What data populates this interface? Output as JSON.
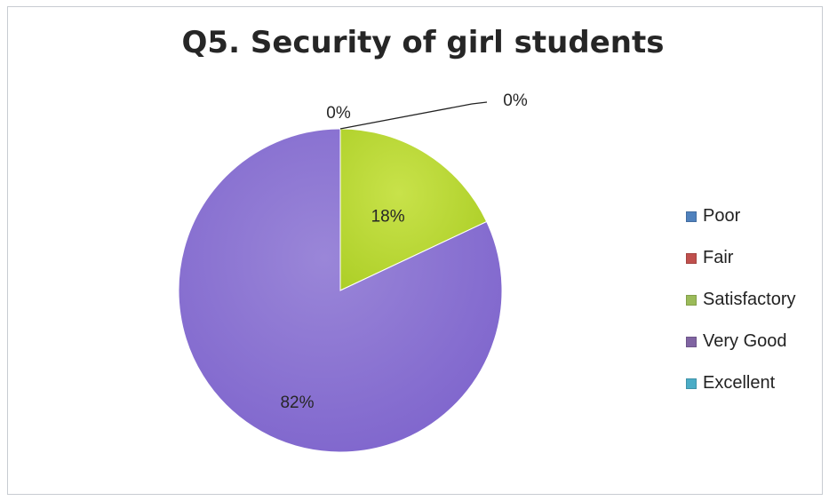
{
  "chart_data": {
    "type": "pie",
    "title": "Q5. Security of girl students",
    "categories": [
      "Poor",
      "Fair",
      "Satisfactory",
      "Very Good",
      "Excellent"
    ],
    "values": [
      0,
      0,
      18,
      82,
      0
    ],
    "data_labels": [
      "0%",
      "0%",
      "18%",
      "82%",
      "0%"
    ],
    "visible_labels": [
      "0%",
      "0%",
      "18%",
      "82%"
    ],
    "colors": [
      "#4f81bd",
      "#c0504d",
      "#9bbb59",
      "#8064a2",
      "#4bacc6"
    ],
    "legend_position": "right"
  }
}
